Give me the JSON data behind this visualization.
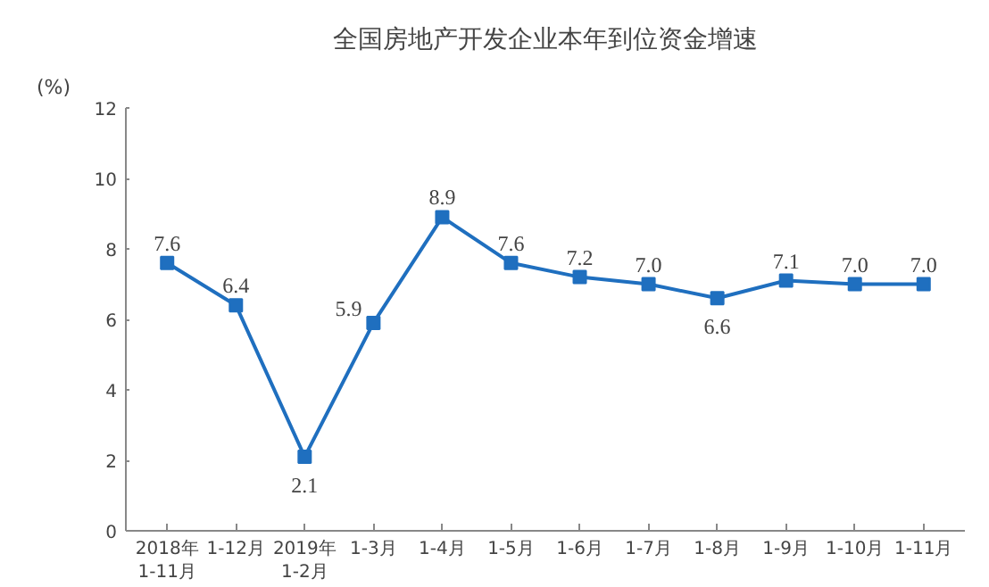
{
  "chart_data": {
    "type": "line",
    "title": "全国房地产开发企业本年到位资金增速",
    "ylabel": "(%)",
    "categories": [
      "2018年\n1-11月",
      "1-12月",
      "2019年\n1-2月",
      "1-3月",
      "1-4月",
      "1-5月",
      "1-6月",
      "1-7月",
      "1-8月",
      "1-9月",
      "1-10月",
      "1-11月"
    ],
    "series": [
      {
        "color": "#1f6fbf",
        "values": [
          7.6,
          6.4,
          2.1,
          5.9,
          8.9,
          7.6,
          7.2,
          7.0,
          6.6,
          7.1,
          7.0,
          7.0
        ],
        "value_labels": [
          "7.6",
          "6.4",
          "2.1",
          "5.9",
          "8.9",
          "7.6",
          "7.2",
          "7.0",
          "6.6",
          "7.1",
          "7.0",
          "7.0"
        ]
      }
    ],
    "ylim": [
      0,
      12
    ],
    "yticks": [
      0,
      2,
      4,
      6,
      8,
      10,
      12
    ],
    "grid": false,
    "marker": "square",
    "line_style": "solid"
  }
}
